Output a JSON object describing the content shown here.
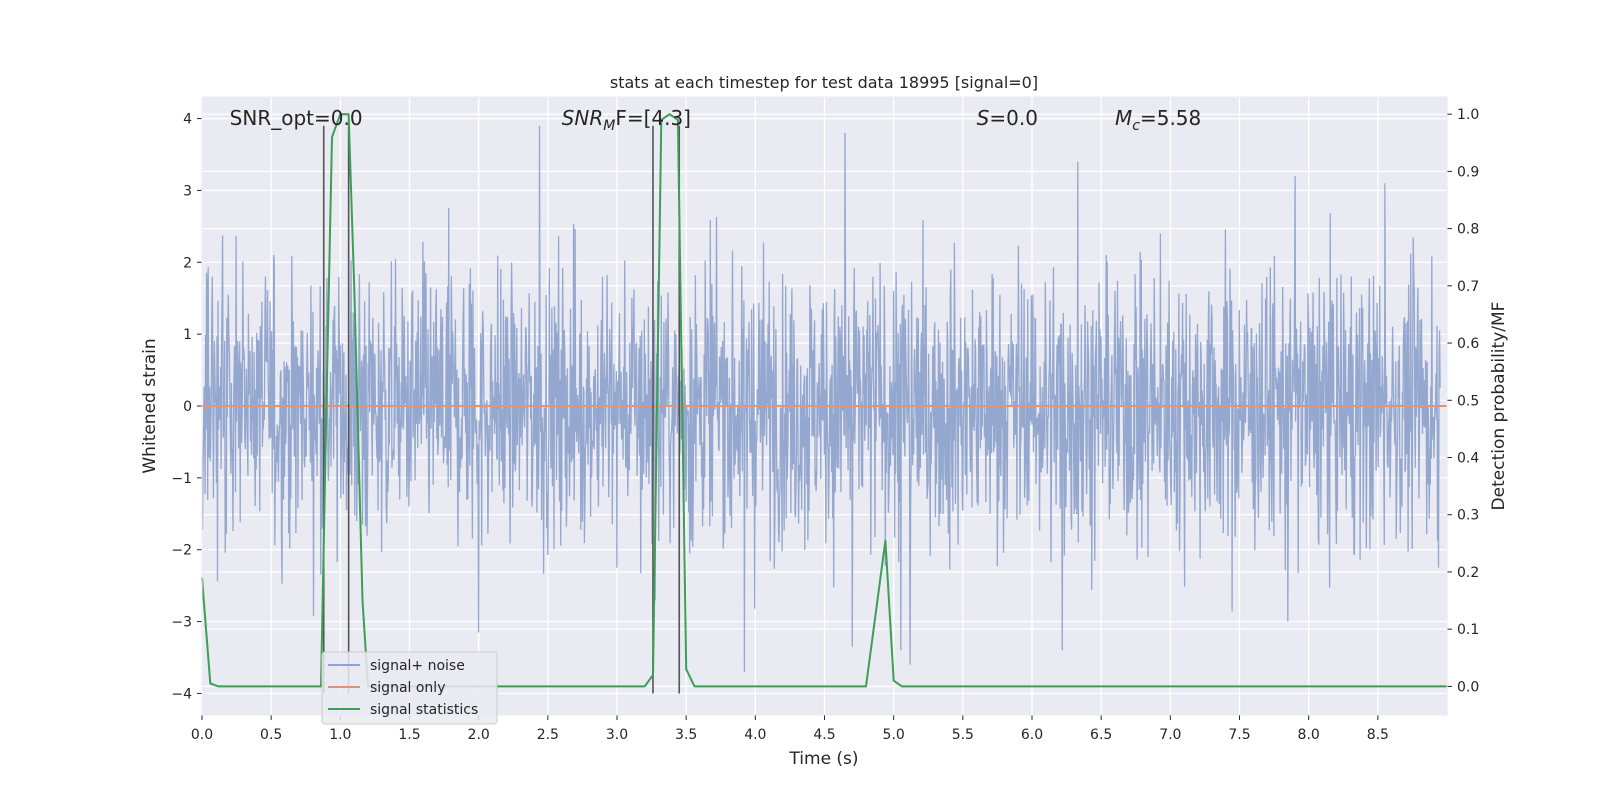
{
  "chart_data": {
    "type": "line",
    "title": "stats at each timestep for test data 18995 [signal=0]",
    "xlabel": "Time (s)",
    "ylabel_left": "Whitened strain",
    "ylabel_right": "Detection probability/MF",
    "xlim": [
      0.0,
      9.0
    ],
    "ylim_left": [
      -4.3,
      4.3
    ],
    "ylim_right": [
      -0.05,
      1.03
    ],
    "x_ticks": [
      0.0,
      0.5,
      1.0,
      1.5,
      2.0,
      2.5,
      3.0,
      3.5,
      4.0,
      4.5,
      5.0,
      5.5,
      6.0,
      6.5,
      7.0,
      7.5,
      8.0,
      8.5
    ],
    "x_tick_labels": [
      "0.0",
      "0.5",
      "1.0",
      "1.5",
      "2.0",
      "2.5",
      "3.0",
      "3.5",
      "4.0",
      "4.5",
      "5.0",
      "5.5",
      "6.0",
      "6.5",
      "7.0",
      "7.5",
      "8.0",
      "8.5"
    ],
    "y_ticks_left": [
      -4,
      -3,
      -2,
      -1,
      0,
      1,
      2,
      3,
      4
    ],
    "y_tick_labels_left": [
      "−4",
      "−3",
      "−2",
      "−1",
      "0",
      "1",
      "2",
      "3",
      "4"
    ],
    "y_ticks_right": [
      0.0,
      0.1,
      0.2,
      0.3,
      0.4,
      0.5,
      0.6,
      0.7,
      0.8,
      0.9,
      1.0
    ],
    "y_tick_labels_right": [
      "0.0",
      "0.1",
      "0.2",
      "0.3",
      "0.4",
      "0.5",
      "0.6",
      "0.7",
      "0.8",
      "0.9",
      "1.0"
    ],
    "grid": true,
    "legend_position": "bottom-left",
    "annotations": [
      {
        "prefix": "SNR_opt=",
        "sub": "",
        "suffix": "0.0",
        "italic": false,
        "x": 0.2
      },
      {
        "prefix": "SNR",
        "sub": "M",
        "suffix": "F=[4.3]",
        "italic": true,
        "x": 2.6
      },
      {
        "prefix": "S",
        "sub": "",
        "suffix": "=0.0",
        "italic": true,
        "x": 5.6
      },
      {
        "prefix": "M",
        "sub": "c",
        "suffix": "=5.58",
        "italic": true,
        "x": 6.6
      }
    ],
    "series": [
      {
        "name": "signal+ noise",
        "axis": "left",
        "color": "#8fa3cc",
        "style": "noise",
        "amplitude_range": [
          -3.7,
          3.9
        ],
        "notable_spikes": [
          {
            "x": 2.44,
            "y": 3.9
          },
          {
            "x": 4.65,
            "y": 3.8
          },
          {
            "x": 6.33,
            "y": 3.4
          },
          {
            "x": 7.9,
            "y": 3.2
          },
          {
            "x": 8.55,
            "y": 3.1
          },
          {
            "x": 3.92,
            "y": -3.7
          },
          {
            "x": 5.12,
            "y": -3.6
          },
          {
            "x": 5.05,
            "y": -3.4
          },
          {
            "x": 4.7,
            "y": -3.35
          },
          {
            "x": 2.0,
            "y": -3.15
          },
          {
            "x": 6.22,
            "y": -3.4
          },
          {
            "x": 7.85,
            "y": -3.0
          }
        ]
      },
      {
        "name": "signal only",
        "axis": "left",
        "color": "#e0957a",
        "x": [
          0.0,
          9.0
        ],
        "y": [
          0.0,
          0.0
        ]
      },
      {
        "name": "signal statistics",
        "axis": "right",
        "color": "#3d9e55",
        "x": [
          0.0,
          0.06,
          0.12,
          0.86,
          0.9,
          0.94,
          1.0,
          1.06,
          1.1,
          1.16,
          1.2,
          3.2,
          3.26,
          3.32,
          3.38,
          3.44,
          3.5,
          3.56,
          4.8,
          4.94,
          5.0,
          5.06,
          9.0
        ],
        "y": [
          0.19,
          0.005,
          0.0,
          0.0,
          0.5,
          0.96,
          1.0,
          1.0,
          0.7,
          0.15,
          0.0,
          0.0,
          0.02,
          0.99,
          1.0,
          0.99,
          0.03,
          0.0,
          0.0,
          0.255,
          0.01,
          0.0,
          0.0
        ]
      }
    ],
    "vertical_lines": {
      "color": "#555555",
      "lines": [
        {
          "x": 0.88,
          "y_top": 3.9
        },
        {
          "x": 1.06,
          "y_top": 3.9
        },
        {
          "x": 3.26,
          "y_top": 3.9
        },
        {
          "x": 3.45,
          "y_top": 3.9
        }
      ]
    }
  }
}
